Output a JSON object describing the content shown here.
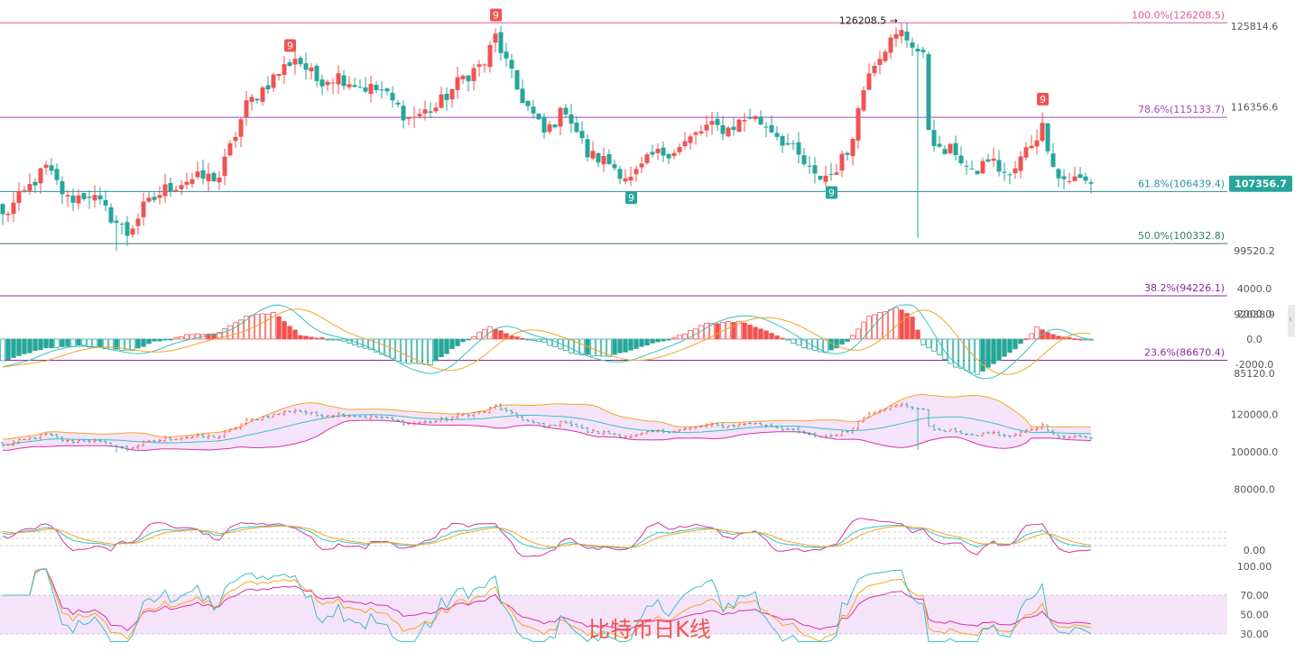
{
  "chart_data": {
    "type": "candlestick",
    "title": "比特币日K线",
    "colors": {
      "up": "#ef5350",
      "down": "#26a69a",
      "fib": "#b0309a",
      "price_tag": "#26a69a"
    },
    "last_price": "107356.7",
    "main_axis": {
      "ticks": [
        "125814.6",
        "116356.6",
        "99520.2",
        "92038.9",
        "85120.0"
      ]
    },
    "fibonacci": [
      {
        "label": "100.0%(126208.5)",
        "value": 126208.5,
        "color": "#e0559a"
      },
      {
        "label": "78.6%(115133.7)",
        "value": 115133.7,
        "color": "#a347b8"
      },
      {
        "label": "61.8%(106439.4)",
        "value": 106439.4,
        "color": "#2a8fa8"
      },
      {
        "label": "50.0%(100332.8)",
        "value": 100332.8,
        "color": "#2a7f6a"
      },
      {
        "label": "38.2%(94226.1)",
        "value": 94226.1,
        "color": "#8a2a9a"
      },
      {
        "label": "23.6%(86670.4)",
        "value": 86670.4,
        "color": "#8a2a9a"
      }
    ],
    "high_annotation": "126208.5",
    "td_markers": [
      {
        "text": "9",
        "type": "sell",
        "index": 53
      },
      {
        "text": "9",
        "type": "sell",
        "index": 91
      },
      {
        "text": "9",
        "type": "sell",
        "index": 192
      },
      {
        "text": "9",
        "type": "buy",
        "index": 116
      },
      {
        "text": "9",
        "type": "buy",
        "index": 153
      }
    ],
    "close_anchors": [
      [
        0,
        103500
      ],
      [
        5,
        107000
      ],
      [
        8,
        109200
      ],
      [
        12,
        105500
      ],
      [
        16,
        106200
      ],
      [
        20,
        103500
      ],
      [
        23,
        101500
      ],
      [
        26,
        104500
      ],
      [
        30,
        106700
      ],
      [
        34,
        107800
      ],
      [
        40,
        108200
      ],
      [
        45,
        116500
      ],
      [
        50,
        119800
      ],
      [
        54,
        122200
      ],
      [
        58,
        119500
      ],
      [
        62,
        120000
      ],
      [
        66,
        118800
      ],
      [
        70,
        118200
      ],
      [
        75,
        115000
      ],
      [
        80,
        116300
      ],
      [
        85,
        119800
      ],
      [
        89,
        121500
      ],
      [
        91,
        124600
      ],
      [
        95,
        118400
      ],
      [
        100,
        113200
      ],
      [
        104,
        116200
      ],
      [
        108,
        110800
      ],
      [
        112,
        109800
      ],
      [
        116,
        107800
      ],
      [
        120,
        110600
      ],
      [
        125,
        111600
      ],
      [
        130,
        114000
      ],
      [
        134,
        113800
      ],
      [
        138,
        115300
      ],
      [
        142,
        113800
      ],
      [
        146,
        111200
      ],
      [
        150,
        108000
      ],
      [
        153,
        108500
      ],
      [
        156,
        111000
      ],
      [
        160,
        121000
      ],
      [
        163,
        123500
      ],
      [
        166,
        125000
      ],
      [
        168,
        123800
      ],
      [
        170,
        122000
      ],
      [
        171,
        114000
      ],
      [
        173,
        111000
      ],
      [
        176,
        111200
      ],
      [
        179,
        108200
      ],
      [
        182,
        110300
      ],
      [
        186,
        108000
      ],
      [
        189,
        111300
      ],
      [
        192,
        114000
      ],
      [
        195,
        108000
      ],
      [
        199,
        107800
      ],
      [
        201,
        107356.7
      ]
    ],
    "macd_axis": {
      "ticks": [
        "4000.0",
        "2000.0",
        "0.0",
        "-2000.0"
      ]
    },
    "macd_hist_anchors": [
      [
        0,
        -1700
      ],
      [
        8,
        -700
      ],
      [
        14,
        -500
      ],
      [
        20,
        -800
      ],
      [
        24,
        -900
      ],
      [
        28,
        -200
      ],
      [
        34,
        300
      ],
      [
        40,
        500
      ],
      [
        45,
        1800
      ],
      [
        50,
        2100
      ],
      [
        55,
        300
      ],
      [
        62,
        -100
      ],
      [
        68,
        -800
      ],
      [
        74,
        -1900
      ],
      [
        79,
        -2000
      ],
      [
        84,
        -500
      ],
      [
        90,
        1000
      ],
      [
        94,
        200
      ],
      [
        100,
        -300
      ],
      [
        106,
        -1200
      ],
      [
        112,
        -1400
      ],
      [
        118,
        -600
      ],
      [
        124,
        100
      ],
      [
        130,
        1200
      ],
      [
        136,
        1400
      ],
      [
        142,
        500
      ],
      [
        148,
        -700
      ],
      [
        152,
        -1100
      ],
      [
        156,
        -200
      ],
      [
        160,
        1800
      ],
      [
        165,
        2500
      ],
      [
        168,
        1800
      ],
      [
        170,
        -400
      ],
      [
        176,
        -2200
      ],
      [
        180,
        -2800
      ],
      [
        184,
        -1700
      ],
      [
        188,
        -400
      ],
      [
        191,
        900
      ],
      [
        195,
        200
      ],
      [
        201,
        -100
      ]
    ],
    "boll_axis": {
      "ticks": [
        "120000.0",
        "100000.0",
        "80000.0"
      ]
    },
    "kdj_axis": {
      "ticks": [
        "0.00"
      ]
    },
    "rsi_axis": {
      "ticks": [
        "100.00",
        "70.00",
        "50.00",
        "30.00"
      ]
    }
  }
}
